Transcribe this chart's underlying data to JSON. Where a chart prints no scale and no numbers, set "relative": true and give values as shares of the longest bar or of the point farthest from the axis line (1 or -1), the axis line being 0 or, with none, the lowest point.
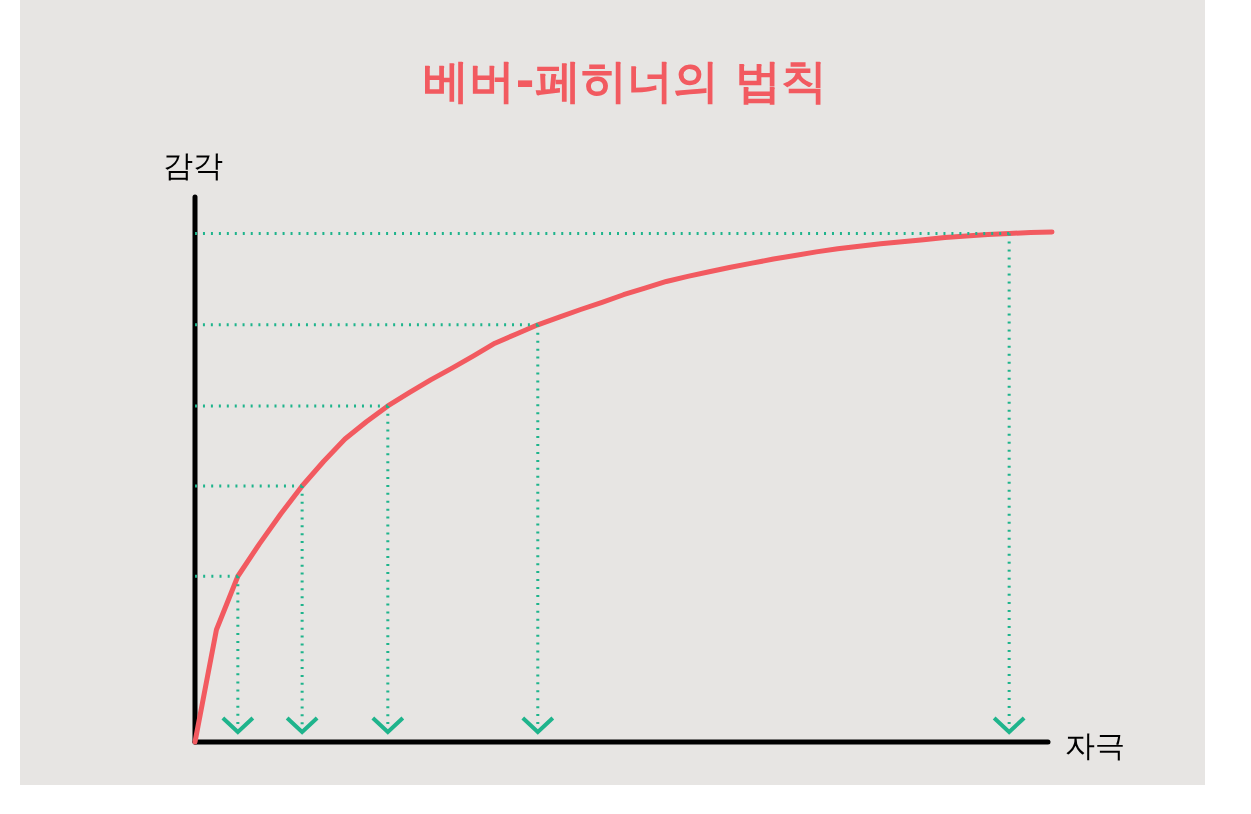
{
  "chart_data": {
    "type": "line",
    "relative": true,
    "title": "베버-페히너의 법칙",
    "xlabel": "자극",
    "ylabel": "감각",
    "categories": [
      null,
      null,
      null,
      null,
      null,
      null,
      null,
      null,
      null,
      null,
      null,
      null,
      null,
      null,
      null,
      null,
      null,
      null,
      null,
      null,
      null,
      null,
      null,
      null,
      null,
      null,
      null,
      null,
      null,
      null,
      null,
      null,
      null,
      null,
      null,
      null,
      null,
      null,
      null,
      null,
      null
    ],
    "series": [
      {
        "color": "#f25a60",
        "values": [
          0,
          0.22,
          0.325,
          0.388,
          0.447,
          0.502,
          0.55,
          0.594,
          0.628,
          0.659,
          0.685,
          0.71,
          0.733,
          0.757,
          0.782,
          0.8,
          0.818,
          0.833,
          0.848,
          0.862,
          0.877,
          0.89,
          0.903,
          0.913,
          0.922,
          0.931,
          0.939,
          0.947,
          0.954,
          0.961,
          0.967,
          0.972,
          0.977,
          0.981,
          0.985,
          0.989,
          0.992,
          0.995,
          0.997,
          0.999,
          1.0
        ]
      },
      {
        "color": "#1fb48c",
        "line_style": "dotted",
        "values": [
          0.325,
          0.325,
          0.325,
          null,
          null,
          null,
          null,
          null,
          null,
          null,
          null,
          null,
          null,
          null,
          null,
          null,
          null,
          null,
          null,
          null,
          null,
          null,
          null,
          null,
          null,
          null,
          null,
          null,
          null,
          null,
          null,
          null,
          null,
          null,
          null,
          null,
          null,
          null,
          null,
          null,
          null
        ]
      },
      {
        "color": "#1fb48c",
        "line_style": "dotted",
        "values": [
          0.502,
          0.502,
          0.502,
          0.502,
          0.502,
          0.502,
          null,
          null,
          null,
          null,
          null,
          null,
          null,
          null,
          null,
          null,
          null,
          null,
          null,
          null,
          null,
          null,
          null,
          null,
          null,
          null,
          null,
          null,
          null,
          null,
          null,
          null,
          null,
          null,
          null,
          null,
          null,
          null,
          null,
          null,
          null
        ]
      },
      {
        "color": "#1fb48c",
        "line_style": "dotted",
        "values": [
          0.659,
          0.659,
          0.659,
          0.659,
          0.659,
          0.659,
          0.659,
          0.659,
          0.659,
          0.659,
          null,
          null,
          null,
          null,
          null,
          null,
          null,
          null,
          null,
          null,
          null,
          null,
          null,
          null,
          null,
          null,
          null,
          null,
          null,
          null,
          null,
          null,
          null,
          null,
          null,
          null,
          null,
          null,
          null,
          null,
          null
        ]
      },
      {
        "color": "#1fb48c",
        "line_style": "dotted",
        "values": [
          0.818,
          0.818,
          0.818,
          0.818,
          0.818,
          0.818,
          0.818,
          0.818,
          0.818,
          0.818,
          0.818,
          0.818,
          0.818,
          0.818,
          0.818,
          0.818,
          0.818,
          null,
          null,
          null,
          null,
          null,
          null,
          null,
          null,
          null,
          null,
          null,
          null,
          null,
          null,
          null,
          null,
          null,
          null,
          null,
          null,
          null,
          null,
          null,
          null
        ]
      },
      {
        "color": "#1fb48c",
        "line_style": "dotted",
        "values": [
          0.997,
          0.997,
          0.997,
          0.997,
          0.997,
          0.997,
          0.997,
          0.997,
          0.997,
          0.997,
          0.997,
          0.997,
          0.997,
          0.997,
          0.997,
          0.997,
          0.997,
          0.997,
          0.997,
          0.997,
          0.997,
          0.997,
          0.997,
          0.997,
          0.997,
          0.997,
          0.997,
          0.997,
          0.997,
          0.997,
          0.997,
          0.997,
          0.997,
          0.997,
          0.997,
          0.997,
          0.997,
          0.997,
          0.997,
          null,
          null
        ]
      }
    ]
  }
}
